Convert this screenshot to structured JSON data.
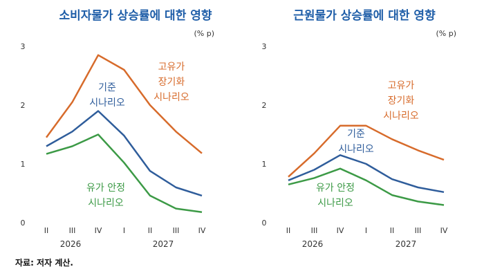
{
  "source": "자료: 저자 계산.",
  "colors": {
    "base": "#2f5d9b",
    "high": "#d76b2b",
    "stable": "#3c9a46",
    "title": "#1f5ea8"
  },
  "chart_data": [
    {
      "type": "line",
      "title": "소비자물가 상승률에 대한 영향",
      "unit": "(% p)",
      "categories": [
        "II",
        "III",
        "IV",
        "I",
        "II",
        "III",
        "IV"
      ],
      "year_labels": [
        "2026",
        "2027"
      ],
      "ylim": [
        0,
        3
      ],
      "yticks": [
        0,
        1,
        2,
        3
      ],
      "grid": false,
      "series": [
        {
          "key": "high",
          "values": [
            1.45,
            2.05,
            2.85,
            2.6,
            2.0,
            1.55,
            1.18
          ]
        },
        {
          "key": "base",
          "values": [
            1.3,
            1.55,
            1.9,
            1.48,
            0.88,
            0.6,
            0.46
          ]
        },
        {
          "key": "stable",
          "values": [
            1.17,
            1.3,
            1.5,
            1.02,
            0.46,
            0.24,
            0.18
          ]
        }
      ],
      "annotations": [
        {
          "key": "high",
          "lines": [
            "고유가",
            "장기화",
            "시나리오"
          ]
        },
        {
          "key": "base",
          "lines": [
            "기준",
            "시나리오"
          ]
        },
        {
          "key": "stable",
          "lines": [
            "유가 안정",
            "시나리오"
          ]
        }
      ]
    },
    {
      "type": "line",
      "title": "근원물가 상승률에 대한 영향",
      "unit": "(% p)",
      "categories": [
        "II",
        "III",
        "IV",
        "I",
        "II",
        "III",
        "IV"
      ],
      "year_labels": [
        "2026",
        "2027"
      ],
      "ylim": [
        0,
        3
      ],
      "yticks": [
        0,
        1,
        2,
        3
      ],
      "grid": false,
      "series": [
        {
          "key": "high",
          "values": [
            0.78,
            1.18,
            1.65,
            1.65,
            1.42,
            1.23,
            1.07
          ]
        },
        {
          "key": "base",
          "values": [
            0.72,
            0.9,
            1.15,
            1.0,
            0.74,
            0.6,
            0.52
          ]
        },
        {
          "key": "stable",
          "values": [
            0.65,
            0.76,
            0.92,
            0.72,
            0.47,
            0.36,
            0.3
          ]
        }
      ],
      "annotations": [
        {
          "key": "high",
          "lines": [
            "고유가",
            "장기화",
            "시나리오"
          ]
        },
        {
          "key": "base",
          "lines": [
            "기준",
            "시나리오"
          ]
        },
        {
          "key": "stable",
          "lines": [
            "유가 안정",
            "시나리오"
          ]
        }
      ]
    }
  ]
}
